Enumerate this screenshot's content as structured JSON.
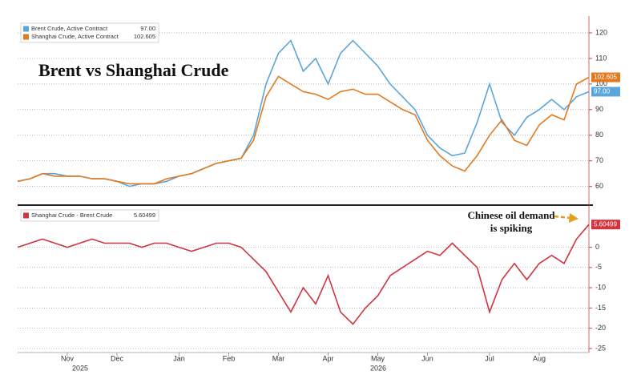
{
  "chart_data": [
    {
      "type": "line",
      "title": "Brent vs Shanghai Crude",
      "series": [
        {
          "name": "Brent Crude, Active Contract",
          "last_label": "97.00",
          "color": "#5aa6dc",
          "values": [
            62,
            63,
            65,
            65,
            64,
            64,
            63,
            63,
            62,
            60,
            61,
            61,
            62,
            64,
            65,
            67,
            69,
            70,
            71,
            80,
            100,
            112,
            117,
            105,
            110,
            100,
            112,
            117,
            112,
            107,
            100,
            95,
            90,
            80,
            75,
            72,
            73,
            85,
            100,
            85,
            80,
            87,
            90,
            94,
            90,
            95,
            97
          ]
        },
        {
          "name": "Shanghai Crude, Active Contract",
          "last_label": "102.605",
          "color": "#e27a1e",
          "values": [
            62,
            63,
            65,
            64,
            64,
            64,
            63,
            63,
            62,
            61,
            61,
            61,
            63,
            64,
            65,
            67,
            69,
            70,
            71,
            78,
            95,
            103,
            100,
            97,
            96,
            94,
            97,
            98,
            96,
            96,
            93,
            90,
            88,
            78,
            72,
            68,
            66,
            72,
            80,
            86,
            78,
            76,
            84,
            88,
            86,
            100,
            102.605
          ]
        }
      ],
      "ylim": [
        53,
        125
      ],
      "yticks": [
        60,
        70,
        80,
        90,
        100,
        110,
        120
      ],
      "grid": true
    },
    {
      "type": "line",
      "categories": [
        null,
        null,
        null,
        null,
        "Nov",
        null,
        null,
        null,
        "Dec",
        null,
        null,
        null,
        null,
        "Jan",
        null,
        null,
        null,
        "Feb",
        null,
        null,
        null,
        "Mar",
        null,
        null,
        null,
        "Apr",
        null,
        null,
        null,
        "May",
        null,
        null,
        null,
        "Jun",
        null,
        null,
        null,
        null,
        "Jul",
        null,
        null,
        null,
        "Aug",
        null,
        null,
        null,
        null
      ],
      "years": [
        null,
        null,
        null,
        null,
        "2025",
        null,
        null,
        null,
        null,
        null,
        null,
        null,
        null,
        null,
        null,
        null,
        null,
        null,
        null,
        null,
        null,
        null,
        null,
        null,
        null,
        null,
        null,
        null,
        "2026",
        null,
        null,
        null,
        null,
        null,
        null,
        null,
        null,
        null,
        null,
        null,
        null,
        null,
        null,
        null,
        null,
        null,
        null
      ],
      "series": [
        {
          "name": "Shanghai Crude - Brent Crude",
          "last_label": "5.60499",
          "color": "#d0343f",
          "values": [
            0,
            1,
            2,
            1,
            0,
            1,
            2,
            1,
            1,
            1,
            0,
            1,
            1,
            0,
            -1,
            0,
            1,
            1,
            0,
            -3,
            -6,
            -11,
            -16,
            -10,
            -14,
            -7,
            -16,
            -19,
            -15,
            -12,
            -7,
            -5,
            -3,
            -1,
            -2,
            1,
            -2,
            -5,
            -16,
            -8,
            -4,
            -8,
            -4,
            -2,
            -4,
            2,
            5.60499
          ]
        }
      ],
      "annotation": [
        "Chinese oil demand",
        "is spiking"
      ],
      "ylim": [
        -26,
        10
      ],
      "yticks": [
        -25,
        -20,
        -15,
        -10,
        -5,
        0
      ],
      "grid": true
    }
  ]
}
